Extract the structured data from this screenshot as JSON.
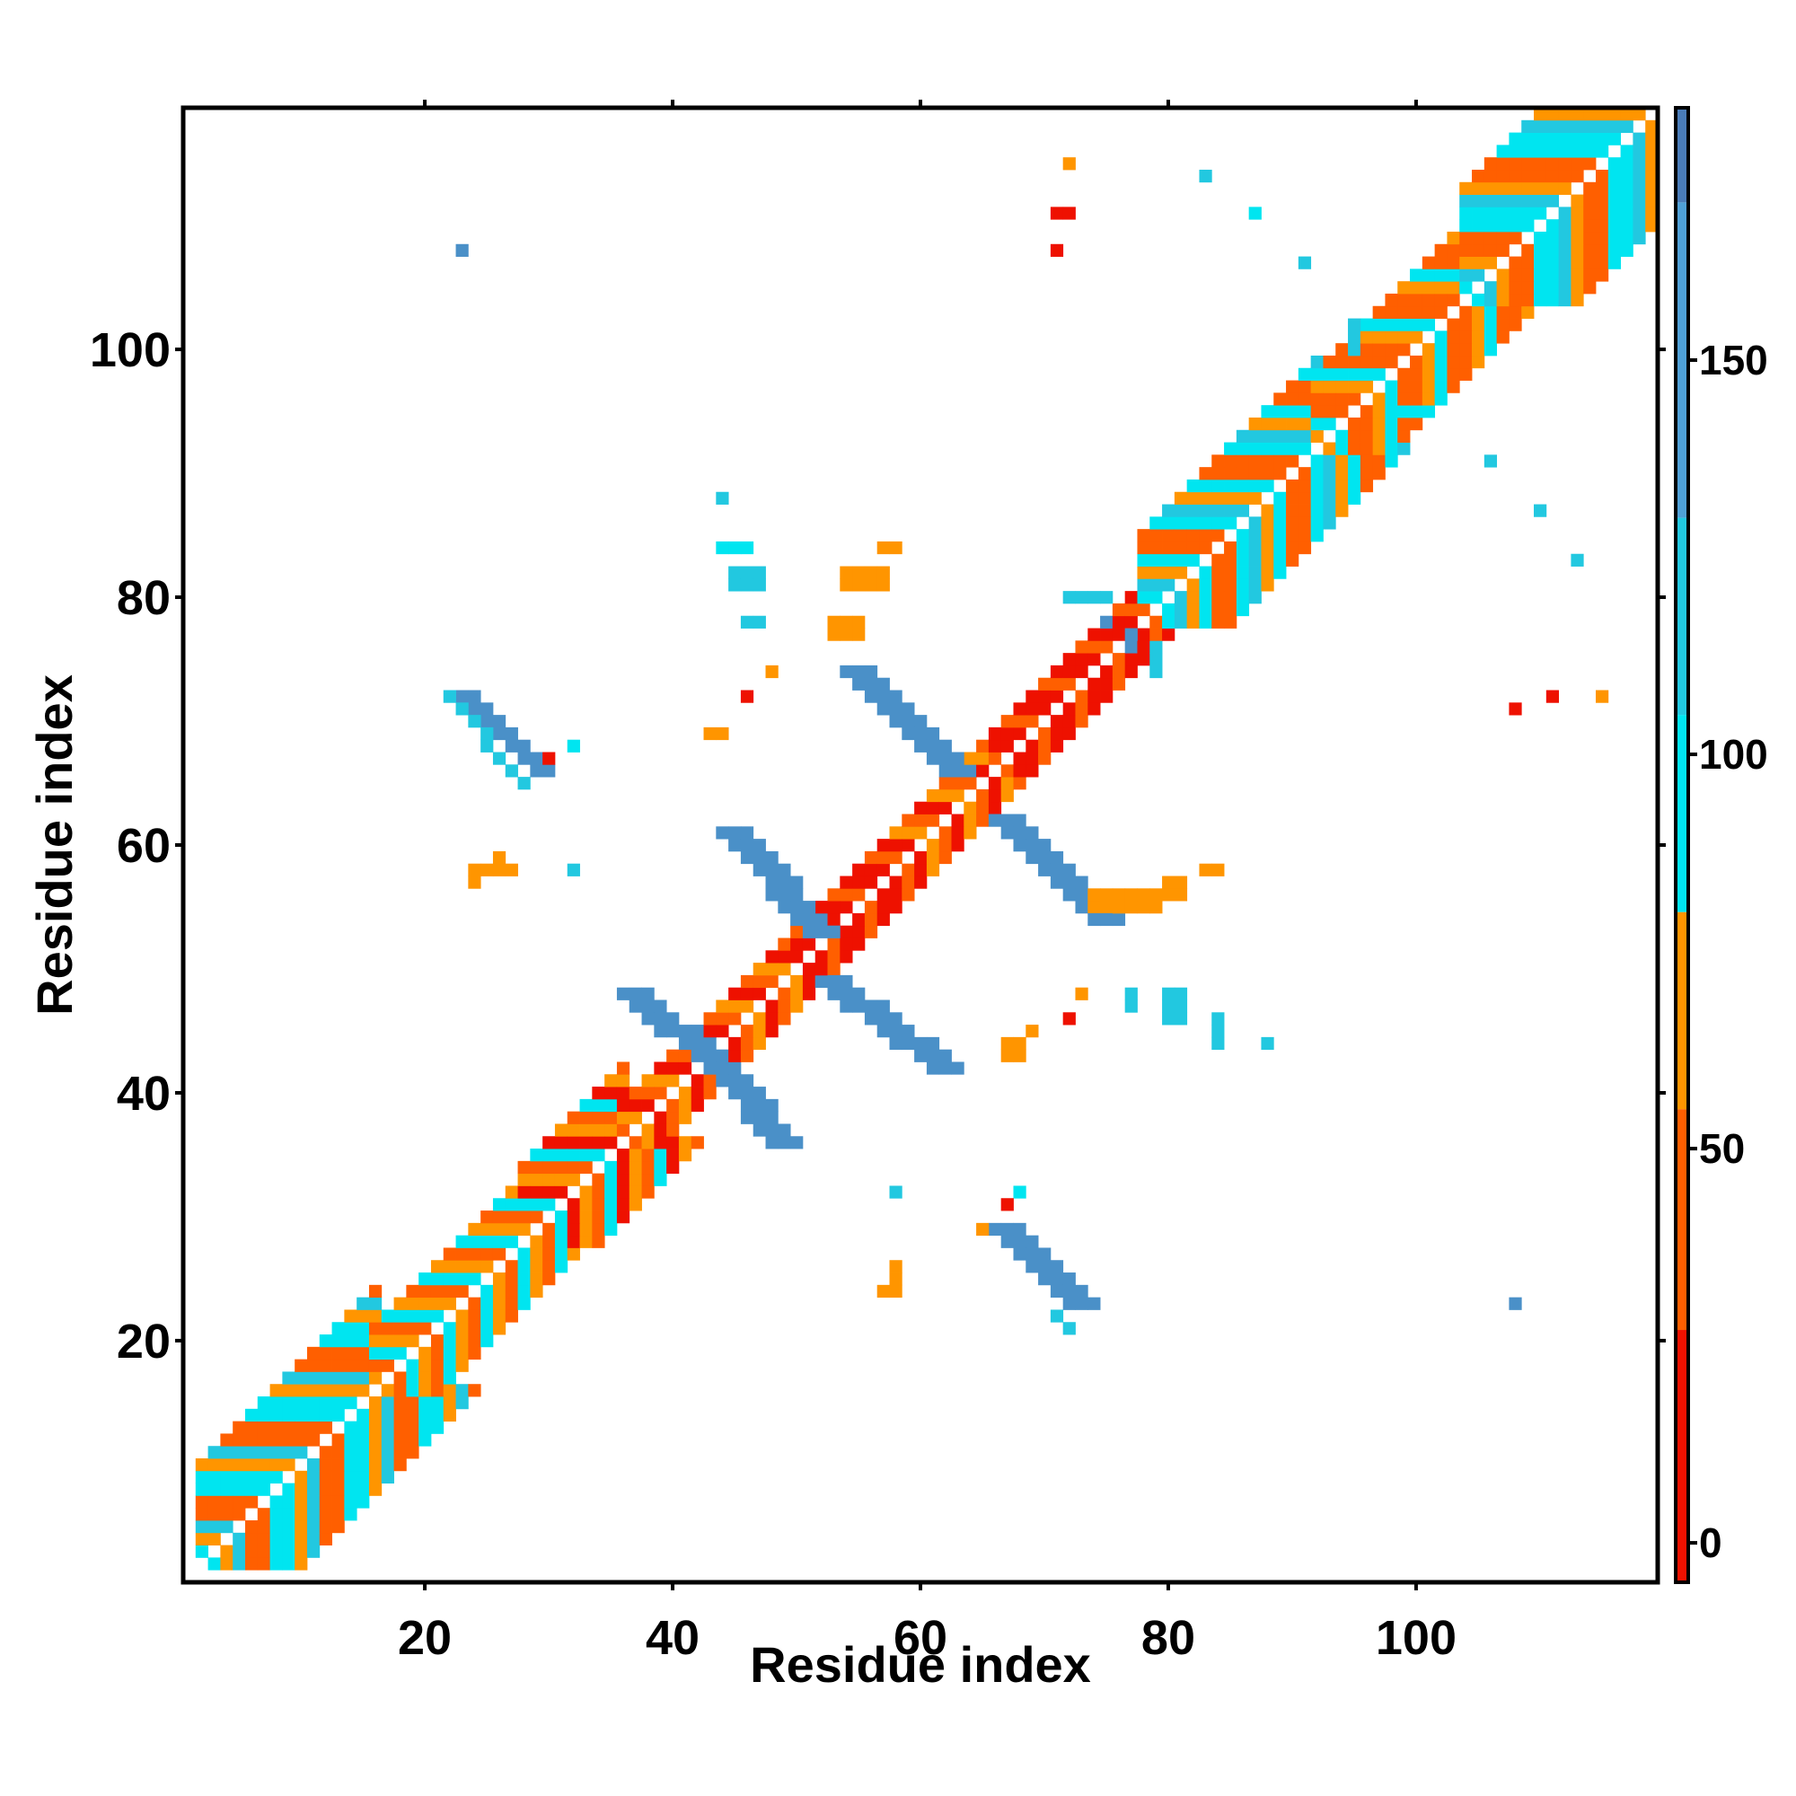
{
  "chart_data": {
    "type": "heatmap",
    "title": "",
    "xlabel": "Residue index",
    "ylabel": "Residue index",
    "xlim": [
      1,
      119
    ],
    "ylim": [
      1,
      119
    ],
    "x_ticks": [
      20,
      40,
      60,
      80,
      100
    ],
    "y_ticks": [
      20,
      40,
      60,
      80,
      100
    ],
    "colorbar": {
      "range": [
        -5,
        182
      ],
      "ticks": [
        0,
        50,
        100,
        150
      ],
      "bands": [
        {
          "from": -5,
          "to": 27,
          "color": "#ee1100"
        },
        {
          "from": 27,
          "to": 55,
          "color": "#ff5f00"
        },
        {
          "from": 55,
          "to": 80,
          "color": "#ff9500"
        },
        {
          "from": 80,
          "to": 105,
          "color": "#00e5f0"
        },
        {
          "from": 105,
          "to": 130,
          "color": "#22c8e0"
        },
        {
          "from": 130,
          "to": 170,
          "color": "#4fa0d6"
        },
        {
          "from": 170,
          "to": 182,
          "color": "#4a7cb8"
        }
      ]
    },
    "color_key": {
      "r": "#ee1100",
      "o": "#ff5f00",
      "y": "#ff9500",
      "c": "#00e5f0",
      "t": "#22c8e0",
      "b": "#4a90c8"
    },
    "diagonal_bands": [
      {
        "from": 2,
        "to": 16,
        "offset_max": 8,
        "pattern": "ooccyt"
      },
      {
        "from": 16,
        "to": 28,
        "offset_max": 5,
        "pattern": "ocy"
      },
      {
        "from": 28,
        "to": 36,
        "offset_max": 6,
        "pattern": "ryoc"
      },
      {
        "from": 36,
        "to": 50,
        "offset_max": 3,
        "pattern": "roy"
      },
      {
        "from": 50,
        "to": 58,
        "offset_max": 3,
        "pattern": "rro"
      },
      {
        "from": 58,
        "to": 66,
        "offset_max": 3,
        "pattern": "ryo"
      },
      {
        "from": 66,
        "to": 78,
        "offset_max": 3,
        "pattern": "ror"
      },
      {
        "from": 78,
        "to": 92,
        "offset_max": 7,
        "pattern": "ooctyc"
      },
      {
        "from": 92,
        "to": 104,
        "offset_max": 6,
        "pattern": "oyco"
      },
      {
        "from": 104,
        "to": 118,
        "offset_max": 9,
        "pattern": "ooccty"
      }
    ],
    "antiparallel_strands": [
      {
        "x0": 23,
        "y0": 72,
        "x1": 29,
        "y1": 66,
        "width": 2,
        "color": "b"
      },
      {
        "x0": 22,
        "y0": 72,
        "x1": 28,
        "y1": 65,
        "width": 1,
        "color": "t"
      },
      {
        "x0": 44,
        "y0": 61,
        "x1": 51,
        "y1": 53,
        "width": 3,
        "color": "b"
      },
      {
        "x0": 36,
        "y0": 48,
        "x1": 43,
        "y1": 42,
        "width": 3,
        "color": "b"
      },
      {
        "x0": 44,
        "y0": 41,
        "x1": 48,
        "y1": 36,
        "width": 3,
        "color": "b"
      },
      {
        "x0": 52,
        "y0": 49,
        "x1": 61,
        "y1": 42,
        "width": 3,
        "color": "b"
      },
      {
        "x0": 54,
        "y0": 74,
        "x1": 62,
        "y1": 66,
        "width": 3,
        "color": "b"
      },
      {
        "x0": 66,
        "y0": 62,
        "x1": 74,
        "y1": 54,
        "width": 3,
        "color": "b"
      },
      {
        "x0": 66,
        "y0": 29,
        "x1": 72,
        "y1": 23,
        "width": 3,
        "color": "b"
      },
      {
        "x0": 71,
        "y0": 22,
        "x1": 72,
        "y1": 21,
        "width": 1,
        "color": "t"
      }
    ],
    "contact_patches": [
      {
        "x": 44,
        "y": 84,
        "w": 3,
        "h": 1,
        "color": "c"
      },
      {
        "x": 45,
        "y": 81,
        "w": 3,
        "h": 2,
        "color": "t"
      },
      {
        "x": 46,
        "y": 78,
        "w": 2,
        "h": 1,
        "color": "t"
      },
      {
        "x": 44,
        "y": 88,
        "w": 1,
        "h": 1,
        "color": "t"
      },
      {
        "x": 54,
        "y": 81,
        "w": 4,
        "h": 2,
        "color": "y"
      },
      {
        "x": 53,
        "y": 77,
        "w": 3,
        "h": 2,
        "color": "y"
      },
      {
        "x": 57,
        "y": 84,
        "w": 2,
        "h": 1,
        "color": "y"
      },
      {
        "x": 48,
        "y": 74,
        "w": 1,
        "h": 1,
        "color": "y"
      },
      {
        "x": 46,
        "y": 72,
        "w": 1,
        "h": 1,
        "color": "r"
      },
      {
        "x": 43,
        "y": 69,
        "w": 2,
        "h": 1,
        "color": "y"
      },
      {
        "x": 24,
        "y": 58,
        "w": 4,
        "h": 1,
        "color": "y"
      },
      {
        "x": 24,
        "y": 57,
        "w": 1,
        "h": 1,
        "color": "y"
      },
      {
        "x": 26,
        "y": 59,
        "w": 1,
        "h": 1,
        "color": "y"
      },
      {
        "x": 32,
        "y": 58,
        "w": 1,
        "h": 1,
        "color": "t"
      },
      {
        "x": 32,
        "y": 68,
        "w": 1,
        "h": 1,
        "color": "c"
      },
      {
        "x": 30,
        "y": 67,
        "w": 1,
        "h": 1,
        "color": "r"
      },
      {
        "x": 74,
        "y": 55,
        "w": 6,
        "h": 2,
        "color": "y"
      },
      {
        "x": 80,
        "y": 56,
        "w": 2,
        "h": 2,
        "color": "y"
      },
      {
        "x": 83,
        "y": 58,
        "w": 2,
        "h": 1,
        "color": "y"
      },
      {
        "x": 73,
        "y": 48,
        "w": 1,
        "h": 1,
        "color": "y"
      },
      {
        "x": 77,
        "y": 47,
        "w": 1,
        "h": 2,
        "color": "t"
      },
      {
        "x": 80,
        "y": 46,
        "w": 2,
        "h": 3,
        "color": "t"
      },
      {
        "x": 84,
        "y": 44,
        "w": 1,
        "h": 3,
        "color": "t"
      },
      {
        "x": 88,
        "y": 44,
        "w": 1,
        "h": 1,
        "color": "t"
      },
      {
        "x": 67,
        "y": 43,
        "w": 2,
        "h": 2,
        "color": "y"
      },
      {
        "x": 69,
        "y": 45,
        "w": 1,
        "h": 1,
        "color": "y"
      },
      {
        "x": 72,
        "y": 46,
        "w": 1,
        "h": 1,
        "color": "r"
      },
      {
        "x": 57,
        "y": 24,
        "w": 2,
        "h": 1,
        "color": "y"
      },
      {
        "x": 58,
        "y": 25,
        "w": 1,
        "h": 2,
        "color": "y"
      },
      {
        "x": 58,
        "y": 32,
        "w": 1,
        "h": 1,
        "color": "t"
      },
      {
        "x": 68,
        "y": 32,
        "w": 1,
        "h": 1,
        "color": "c"
      },
      {
        "x": 67,
        "y": 31,
        "w": 1,
        "h": 1,
        "color": "r"
      },
      {
        "x": 65,
        "y": 29,
        "w": 1,
        "h": 1,
        "color": "y"
      },
      {
        "x": 108,
        "y": 23,
        "w": 1,
        "h": 1,
        "color": "b"
      },
      {
        "x": 108,
        "y": 71,
        "w": 1,
        "h": 1,
        "color": "r"
      },
      {
        "x": 111,
        "y": 72,
        "w": 1,
        "h": 1,
        "color": "r"
      },
      {
        "x": 115,
        "y": 72,
        "w": 1,
        "h": 1,
        "color": "y"
      },
      {
        "x": 110,
        "y": 87,
        "w": 1,
        "h": 1,
        "color": "t"
      },
      {
        "x": 113,
        "y": 83,
        "w": 1,
        "h": 1,
        "color": "t"
      },
      {
        "x": 106,
        "y": 91,
        "w": 1,
        "h": 1,
        "color": "t"
      },
      {
        "x": 23,
        "y": 108,
        "w": 1,
        "h": 1,
        "color": "b"
      },
      {
        "x": 72,
        "y": 115,
        "w": 1,
        "h": 1,
        "color": "y"
      },
      {
        "x": 71,
        "y": 111,
        "w": 2,
        "h": 1,
        "color": "r"
      },
      {
        "x": 71,
        "y": 108,
        "w": 1,
        "h": 1,
        "color": "r"
      },
      {
        "x": 83,
        "y": 114,
        "w": 1,
        "h": 1,
        "color": "t"
      },
      {
        "x": 87,
        "y": 111,
        "w": 1,
        "h": 1,
        "color": "c"
      },
      {
        "x": 91,
        "y": 107,
        "w": 1,
        "h": 1,
        "color": "t"
      },
      {
        "x": 95,
        "y": 100,
        "w": 1,
        "h": 3,
        "color": "t"
      },
      {
        "x": 98,
        "y": 95,
        "w": 4,
        "h": 1,
        "color": "c"
      },
      {
        "x": 72,
        "y": 80,
        "w": 4,
        "h": 1,
        "color": "t"
      },
      {
        "x": 75,
        "y": 78,
        "w": 1,
        "h": 1,
        "color": "b"
      },
      {
        "x": 79,
        "y": 74,
        "w": 1,
        "h": 3,
        "color": "t"
      },
      {
        "x": 77,
        "y": 76,
        "w": 1,
        "h": 2,
        "color": "b"
      }
    ]
  }
}
